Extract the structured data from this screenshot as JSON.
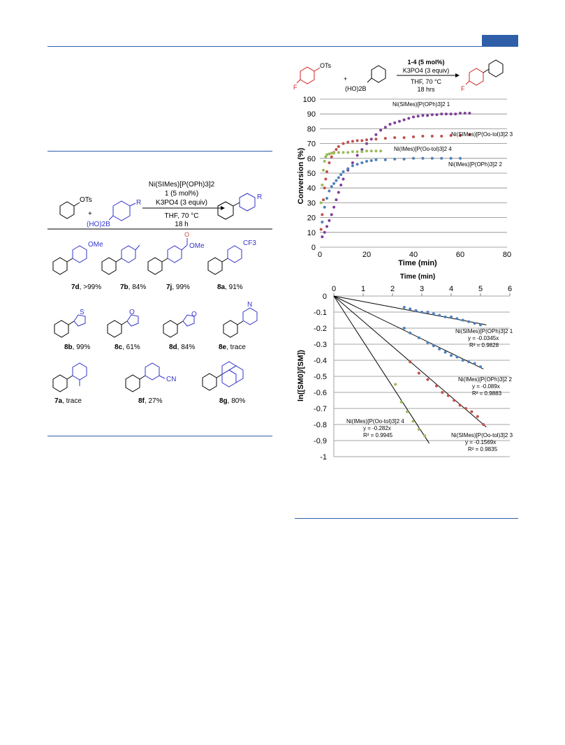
{
  "scheme": {
    "reactant_label": "OTs",
    "boronic_label": "(HO)2B",
    "r_label": "R",
    "catalyst_line1": "Ni(SIMes)[P(OPh)3]2",
    "catalyst_line2": "1 (5 mol%)",
    "base": "K3PO4 (3 equiv)",
    "solvent": "THF, 70 °C",
    "time": "18 h",
    "products": [
      {
        "id": "7d",
        "yield": ", >99%",
        "sub": "OMe"
      },
      {
        "id": "7b",
        "yield": ", 84%",
        "sub": ""
      },
      {
        "id": "7j",
        "yield": ", 99%",
        "sub": "OMe"
      },
      {
        "id": "8a",
        "yield": ", 91%",
        "sub": "CF3"
      },
      {
        "id": "8b",
        "yield": ", 99%",
        "sub": "S"
      },
      {
        "id": "8c",
        "yield": ", 61%",
        "sub": "O"
      },
      {
        "id": "8d",
        "yield": ", 84%",
        "sub": "O"
      },
      {
        "id": "8e",
        "yield": ", trace",
        "sub": "N"
      },
      {
        "id": "7a",
        "yield": ", trace",
        "sub": ""
      },
      {
        "id": "8f",
        "yield": ", 27%",
        "sub": "CN"
      },
      {
        "id": "8g",
        "yield": ", 80%",
        "sub": ""
      }
    ]
  },
  "scheme2": {
    "reactant_sub": "OTs",
    "reactant_f": "F",
    "boronic_label": "(HO)2B",
    "cat": "1-4 (5 mol%)",
    "base": "K3PO4 (3 equiv)",
    "solvent": "THF, 70 °C",
    "time": "18 hrs",
    "product_f": "F"
  },
  "chart_data": [
    {
      "type": "scatter",
      "xlabel": "Time (min)",
      "ylabel": "Conversion (%)",
      "xlim": [
        0,
        80
      ],
      "ylim": [
        0,
        100
      ],
      "xticks": [
        0,
        20,
        40,
        60,
        80
      ],
      "yticks": [
        0,
        10,
        20,
        30,
        40,
        50,
        60,
        70,
        80,
        90,
        100
      ],
      "grid": "horizontal",
      "series": [
        {
          "name": "Ni(SIMes)[P(OPh)3]2 1",
          "color": "#7f3f98",
          "x": [
            1,
            2,
            3,
            4,
            5,
            6,
            7,
            8,
            9,
            10,
            12,
            14,
            16,
            18,
            20,
            22,
            24,
            26,
            28,
            30,
            32,
            34,
            36,
            38,
            40,
            42,
            44,
            46,
            48,
            50,
            52,
            54,
            56,
            58,
            60,
            62,
            64
          ],
          "y": [
            7,
            10,
            14,
            18,
            22,
            27,
            32,
            37,
            42,
            46,
            52,
            57,
            62,
            66,
            70,
            73,
            76,
            79,
            81,
            83,
            84,
            85,
            86,
            87,
            88,
            88.5,
            89,
            89,
            89.5,
            89.5,
            90,
            90,
            90,
            90,
            90.5,
            90.5,
            90.5
          ]
        },
        {
          "name": "Ni(SIMes)[P(Oo-tol)3]2 3",
          "color": "#c0504d",
          "x": [
            0.5,
            1,
            1.5,
            2,
            2.5,
            3,
            4,
            5,
            6,
            7,
            8,
            10,
            12,
            14,
            16,
            18,
            20,
            24,
            28,
            32,
            36,
            40,
            44,
            48,
            52,
            56,
            60,
            64
          ],
          "y": [
            12,
            22,
            32,
            40,
            46,
            51,
            57,
            61,
            64,
            66,
            68,
            70,
            71,
            71.5,
            72,
            72,
            72.5,
            73,
            73.5,
            74,
            74,
            74.5,
            75,
            75,
            75,
            75.5,
            75.5,
            76
          ]
        },
        {
          "name": "Ni(IMes)[P(Oo-tol)3]2 4",
          "color": "#9bbb59",
          "x": [
            0.5,
            1,
            1.5,
            2,
            2.5,
            3,
            4,
            5,
            6,
            8,
            10,
            12,
            14,
            16,
            18,
            20,
            22,
            24,
            26
          ],
          "y": [
            30,
            42,
            52,
            58,
            61,
            62.5,
            63,
            63.5,
            63.5,
            64,
            64,
            64,
            64.5,
            64.5,
            64.5,
            65,
            65,
            65,
            65
          ]
        },
        {
          "name": "Ni(IMes)[P(OPh)3]2 2",
          "color": "#4f81bd",
          "x": [
            1,
            2,
            3,
            4,
            5,
            6,
            7,
            8,
            9,
            10,
            12,
            14,
            16,
            18,
            20,
            22,
            24,
            28,
            32,
            36,
            40,
            44,
            48,
            52,
            56,
            60
          ],
          "y": [
            17,
            27,
            33,
            38,
            41,
            43,
            45,
            47,
            49,
            51,
            53,
            55,
            56,
            57,
            58,
            58.5,
            59,
            59,
            59.5,
            59.5,
            60,
            60,
            60,
            60,
            60,
            60
          ]
        }
      ],
      "labels": [
        {
          "text": "Ni(SIMes)[P(OPh)3]2 1"
        },
        {
          "text": "Ni(SIMes)[P(Oo-tol)3]2 3"
        },
        {
          "text": "Ni(IMes)[P(Oo-tol)3]2 4"
        },
        {
          "text": "Ni(IMes)[P(OPh)3]2 2"
        }
      ]
    },
    {
      "type": "scatter",
      "xlabel": "Time (min)",
      "ylabel": "ln([SM0]/[SM])",
      "xlim": [
        0,
        6
      ],
      "ylim": [
        -1,
        0
      ],
      "xticks": [
        0,
        1,
        2,
        3,
        4,
        5,
        6
      ],
      "yticks": [
        0,
        -0.1,
        -0.2,
        -0.3,
        -0.4,
        -0.5,
        -0.6,
        -0.7,
        -0.8,
        -0.9,
        -1
      ],
      "grid": "horizontal",
      "series": [
        {
          "name": "Ni(SIMes)[P(OPh)3]2 1",
          "color": "#4f81bd",
          "slope": -0.0345,
          "fit_xmax": 5.2,
          "x": [
            2.4,
            2.6,
            2.8,
            3.0,
            3.2,
            3.4,
            3.6,
            3.8,
            4.0,
            4.2,
            4.4,
            4.6,
            4.8,
            5.0
          ],
          "y": [
            -0.07,
            -0.08,
            -0.09,
            -0.1,
            -0.1,
            -0.11,
            -0.12,
            -0.13,
            -0.13,
            -0.14,
            -0.15,
            -0.16,
            -0.17,
            -0.18
          ]
        },
        {
          "name": "Ni(IMes)[P(OPh)3]2 2",
          "color": "#4f81bd",
          "slope": -0.089,
          "fit_xmax": 5.1,
          "x": [
            2.4,
            2.6,
            2.9,
            3.2,
            3.4,
            3.6,
            3.8,
            4.0,
            4.2,
            4.4,
            4.6,
            4.8,
            5.0
          ],
          "y": [
            -0.2,
            -0.23,
            -0.26,
            -0.29,
            -0.31,
            -0.33,
            -0.35,
            -0.37,
            -0.38,
            -0.4,
            -0.41,
            -0.42,
            -0.44
          ]
        },
        {
          "name": "Ni(SIMes)[P(Oo-tol)3]2 3",
          "color": "#c0504d",
          "slope": -0.1569,
          "fit_xmax": 5.2,
          "x": [
            2.6,
            2.9,
            3.2,
            3.5,
            3.7,
            3.9,
            4.1,
            4.3,
            4.5,
            4.7,
            4.9,
            5.1
          ],
          "y": [
            -0.41,
            -0.48,
            -0.52,
            -0.56,
            -0.6,
            -0.62,
            -0.65,
            -0.68,
            -0.7,
            -0.72,
            -0.75,
            -0.8
          ]
        },
        {
          "name": "Ni(IMes)[P(Oo-tol)3]2 4",
          "color": "#9bbb59",
          "slope": -0.282,
          "fit_xmax": 3.25,
          "x": [
            2.1,
            2.3,
            2.5,
            2.7,
            2.9,
            3.1
          ],
          "y": [
            -0.55,
            -0.66,
            -0.72,
            -0.78,
            -0.83,
            -0.87
          ]
        }
      ],
      "labels": [
        {
          "line1": "Ni(SIMes)[P(OPh)3]2 1",
          "line2": "y = -0.0345x",
          "line3": "R² = 0.9828"
        },
        {
          "line1": "Ni(IMes)[P(OPh)3]2 2",
          "line2": "y = -0.089x",
          "line3": "R² = 0.9883"
        },
        {
          "line1": "Ni(SIMes)[P(Oo-tol)3]2 3",
          "line2": "y = -0.1569x",
          "line3": "R² = 0.9835"
        },
        {
          "line1": "Ni(IMes)[P(Oo-tol)3]2 4",
          "line2": "y = -0.282x",
          "line3": "R² = 0.9945"
        }
      ]
    }
  ]
}
